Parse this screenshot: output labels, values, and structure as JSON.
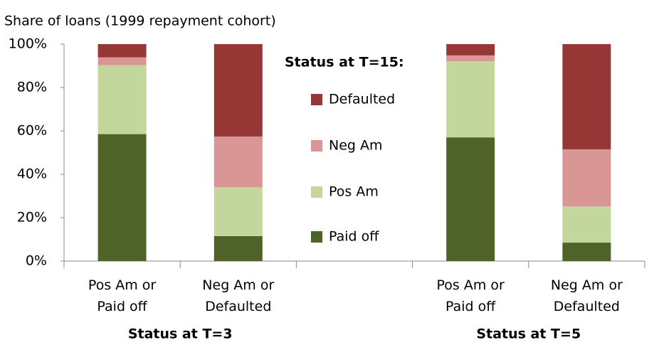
{
  "chart_data": {
    "type": "stacked_bar",
    "title": "Share of loans (1999 repayment cohort)",
    "categories": [
      "Pos Am or Paid off",
      "Neg Am or Defaulted",
      null,
      "Pos Am or Paid off",
      "Neg Am or Defaulted"
    ],
    "groups": [
      "Status at T=3",
      "Status at T=5"
    ],
    "legend_title": "Status at T=15:",
    "series": [
      {
        "name": "Paid off",
        "color": "#4f6228",
        "values": [
          58.5,
          11.5,
          null,
          57,
          8.5
        ]
      },
      {
        "name": "Pos Am",
        "color": "#c3d69b",
        "values": [
          31.8,
          22.6,
          null,
          35.1,
          16.7
        ]
      },
      {
        "name": "Neg Am",
        "color": "#d99694",
        "values": [
          3.6,
          23.3,
          null,
          2.7,
          26.3
        ]
      },
      {
        "name": "Defaulted",
        "color": "#953735",
        "values": [
          6.1,
          42.6,
          null,
          5.2,
          48.5
        ]
      }
    ],
    "ylim": [
      0,
      100
    ],
    "yticks": [
      {
        "value": 0,
        "label": "0%"
      },
      {
        "value": 20,
        "label": "20%"
      },
      {
        "value": 40,
        "label": "40%"
      },
      {
        "value": 60,
        "label": "60%"
      },
      {
        "value": 80,
        "label": "80%"
      },
      {
        "value": 100,
        "label": "100%"
      }
    ],
    "grid": false
  }
}
